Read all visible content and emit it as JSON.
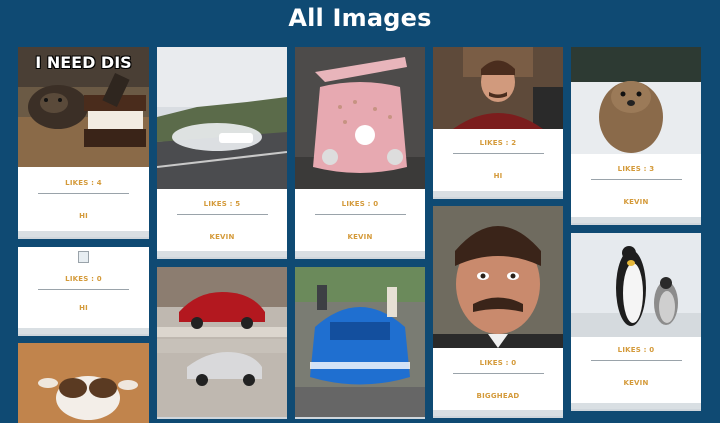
{
  "page": {
    "title": "All Images"
  },
  "cards": [
    {
      "likes": "LIKES : 4",
      "user": "HI",
      "meme": "I NEED DIS",
      "image": "otter-icecream-image"
    },
    {
      "likes": "LIKES : 0",
      "user": "HI",
      "image": "broken-image-icon"
    },
    {
      "likes": "LIKES : 5",
      "user": "KEVIN",
      "image": "drifting-car-image"
    },
    {
      "likes": "LIKES : 0",
      "user": "KEVIN",
      "image": "pink-porsche-image"
    },
    {
      "likes": "LIKES : 0",
      "user": "KEVIN",
      "image": "gendarmerie-car-image"
    },
    {
      "likes": "LIKES : 2",
      "user": "HI",
      "image": "ron-swanson-office-image"
    },
    {
      "likes": "LIKES : 0",
      "user": "BIGGHEAD",
      "image": "ron-swanson-portrait-image"
    },
    {
      "likes": "LIKES : 3",
      "user": "KEVIN",
      "image": "quokka-image"
    },
    {
      "likes": "LIKES : 0",
      "user": "KEVIN",
      "image": "penguins-image"
    },
    {
      "image": "puppy-image"
    },
    {
      "image": "supercars-showroom-image"
    }
  ]
}
